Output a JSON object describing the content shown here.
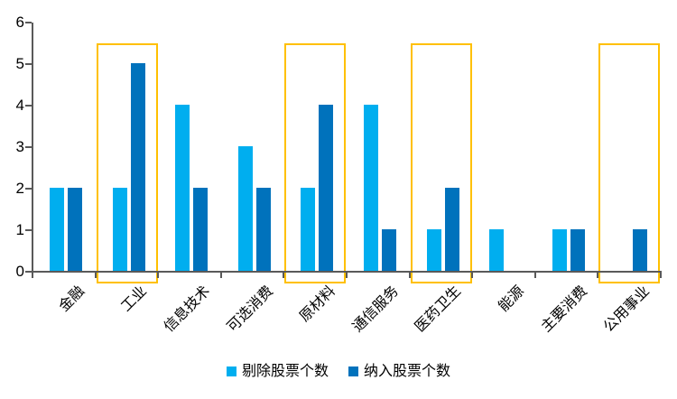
{
  "chart_data": {
    "type": "bar",
    "title": "",
    "categories": [
      "金融",
      "工业",
      "信息技术",
      "可选消费",
      "原材料",
      "通信服务",
      "医药卫生",
      "能源",
      "主要消费",
      "公用事业"
    ],
    "series": [
      {
        "name": "剔除股票个数",
        "color": "#00AEEF",
        "values": [
          2,
          2,
          4,
          3,
          2,
          4,
          1,
          1,
          1,
          0
        ]
      },
      {
        "name": "纳入股票个数",
        "color": "#0072BC",
        "values": [
          2,
          5,
          2,
          2,
          4,
          1,
          2,
          0,
          1,
          1
        ]
      }
    ],
    "highlighted_categories": [
      "工业",
      "原材料",
      "医药卫生",
      "公用事业"
    ],
    "highlight_color": "#FFC000",
    "axis_color": "#595959",
    "text_color": "#000000",
    "xlabel": "",
    "ylabel": "",
    "y_axis": {
      "min": 0,
      "max": 6,
      "tick_step": 1,
      "ticks": [
        0,
        1,
        2,
        3,
        4,
        5,
        6
      ]
    },
    "grid": false,
    "legend_position": "bottom"
  }
}
